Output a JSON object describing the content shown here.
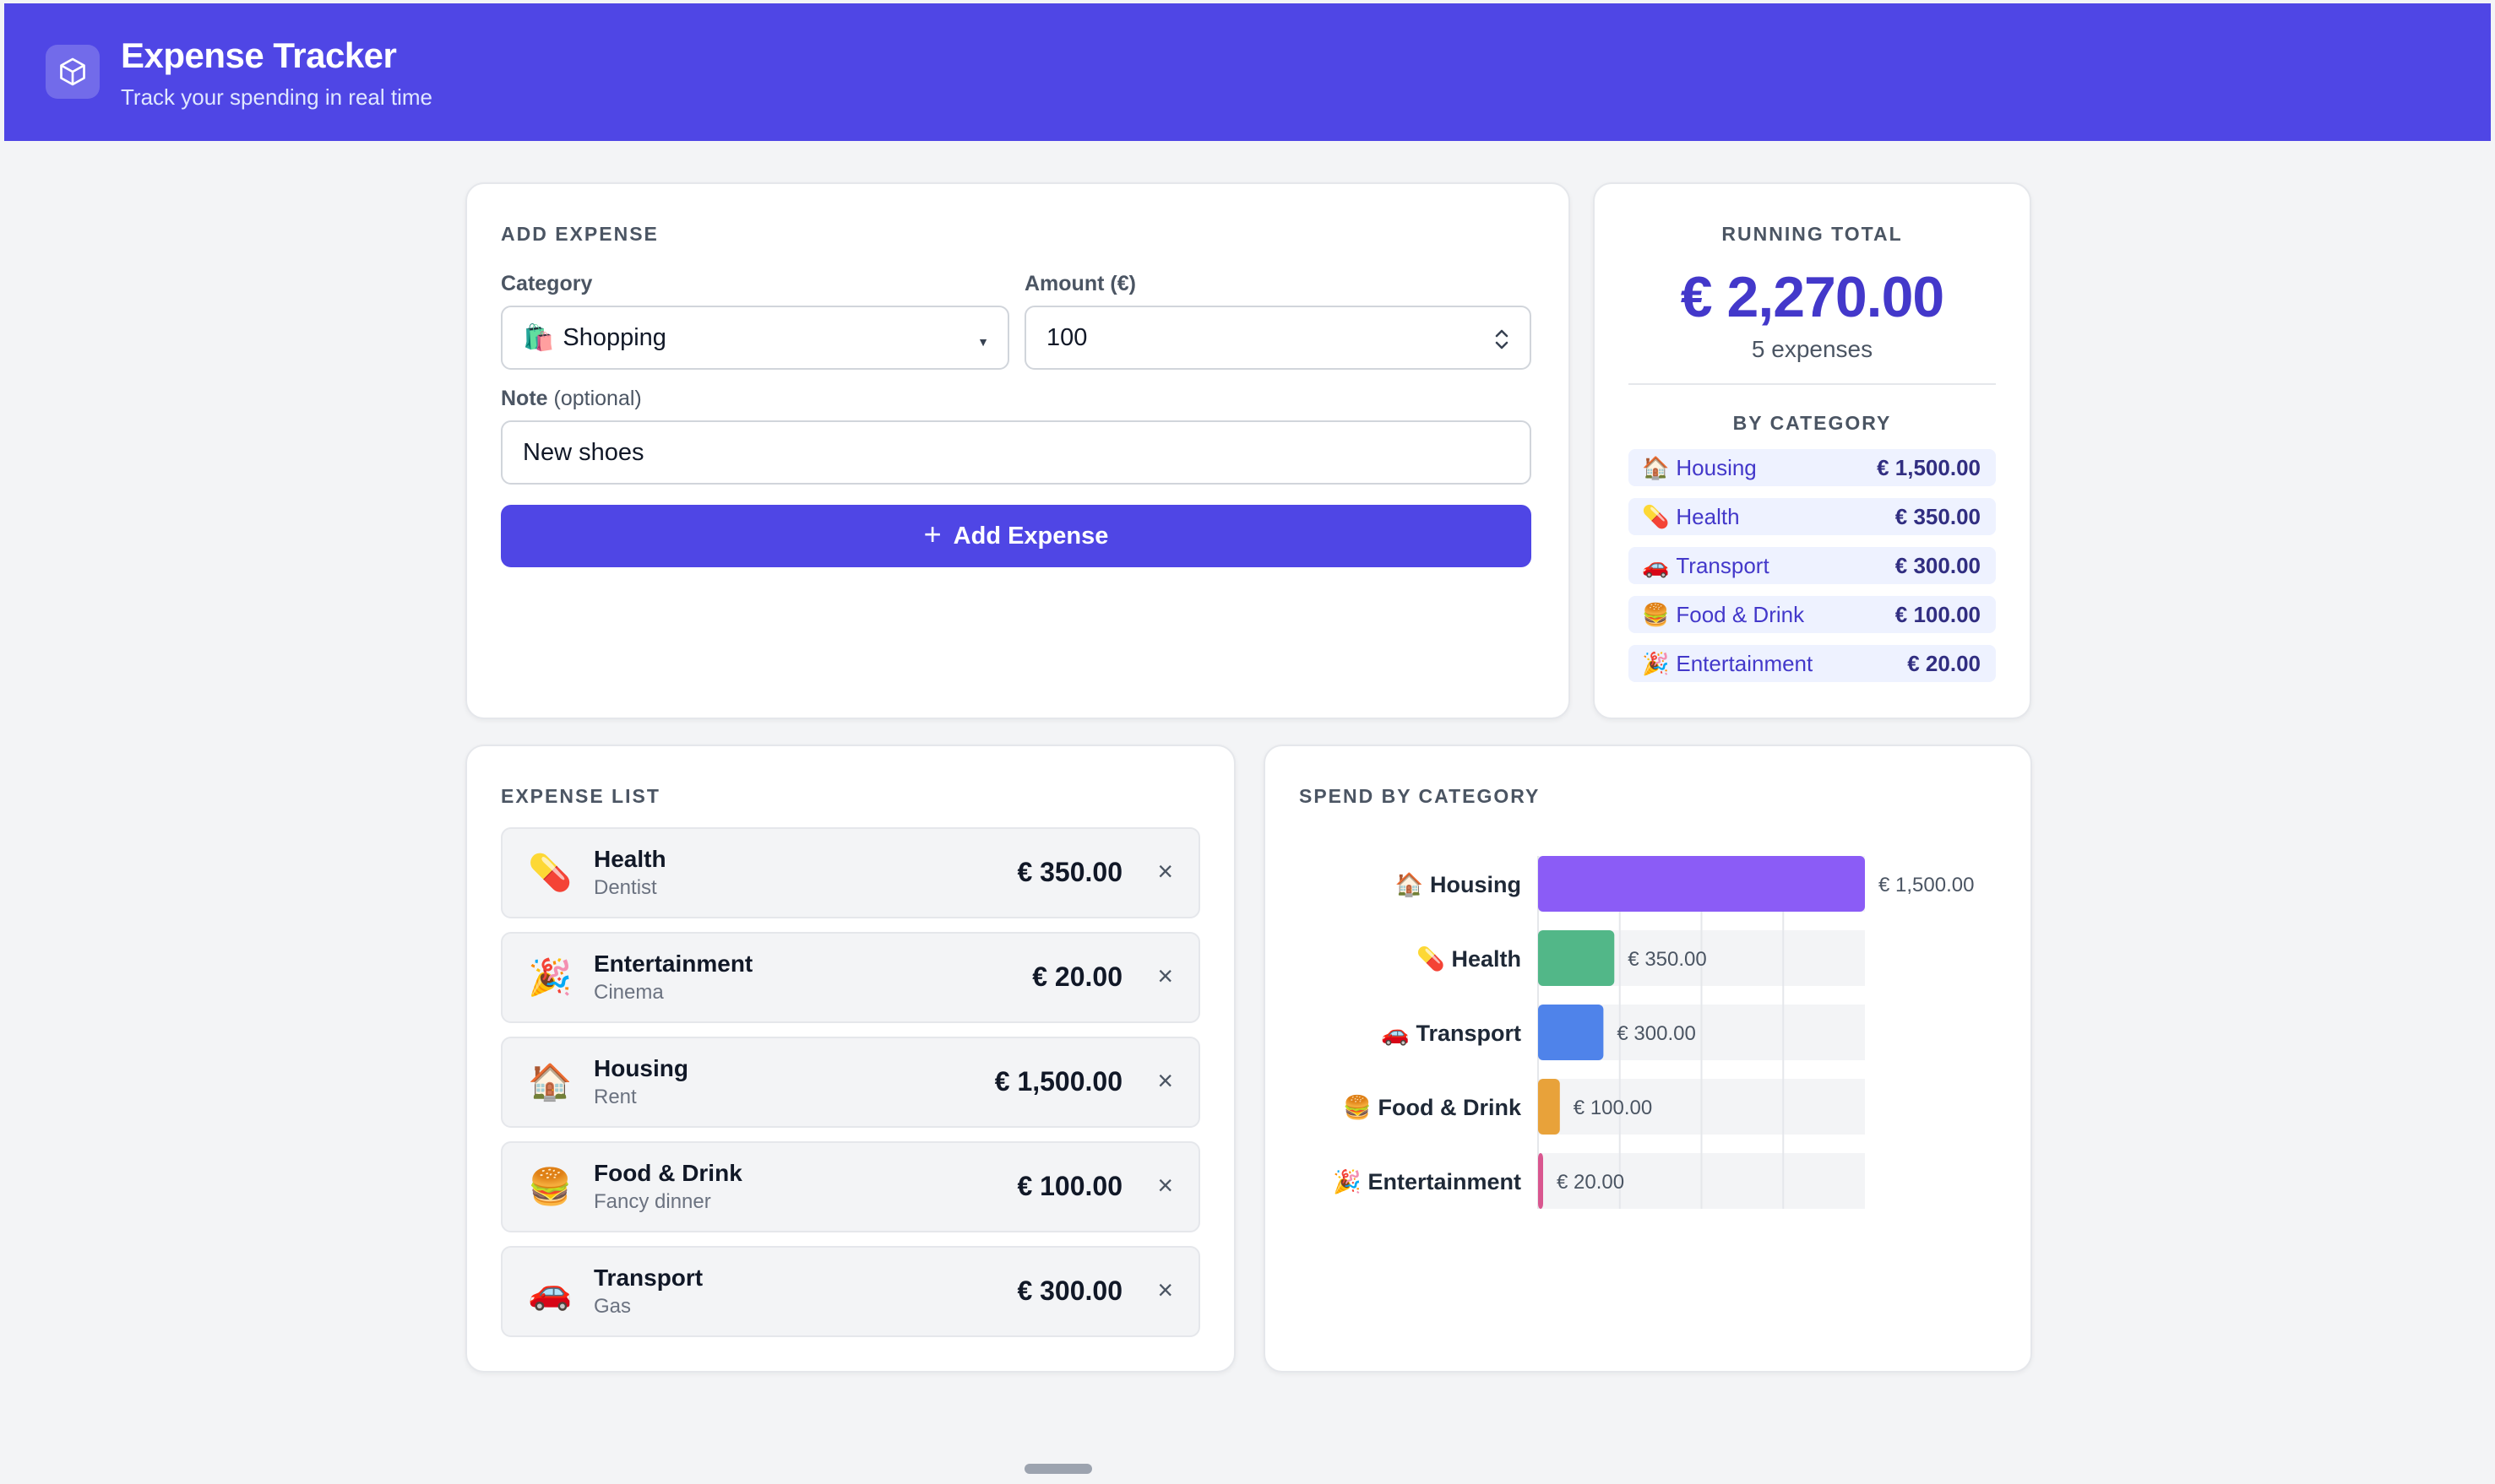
{
  "header": {
    "title": "Expense Tracker",
    "subtitle": "Track your spending in real time",
    "logo_icon": "cube-icon"
  },
  "add_expense": {
    "heading": "Add Expense",
    "category_label": "Category",
    "category_value": "Shopping",
    "category_emoji": "🛍️",
    "amount_label": "Amount (€)",
    "amount_value": "100",
    "note_label": "Note",
    "note_optional": "(optional)",
    "note_value": "New shoes",
    "button_label": "Add Expense"
  },
  "running_total": {
    "heading": "Running Total",
    "amount": "€ 2,270.00",
    "count": "5 expenses",
    "by_category_heading": "By Category",
    "categories": [
      {
        "emoji": "🏠",
        "name": "Housing",
        "amount": "€ 1,500.00"
      },
      {
        "emoji": "💊",
        "name": "Health",
        "amount": "€ 350.00"
      },
      {
        "emoji": "🚗",
        "name": "Transport",
        "amount": "€ 300.00"
      },
      {
        "emoji": "🍔",
        "name": "Food & Drink",
        "amount": "€ 100.00"
      },
      {
        "emoji": "🎉",
        "name": "Entertainment",
        "amount": "€ 20.00"
      }
    ]
  },
  "expense_list": {
    "heading": "Expense List",
    "items": [
      {
        "emoji": "💊",
        "category": "Health",
        "note": "Dentist",
        "amount": "€ 350.00",
        "remove": "×"
      },
      {
        "emoji": "🎉",
        "category": "Entertainment",
        "note": "Cinema",
        "amount": "€ 20.00",
        "remove": "×"
      },
      {
        "emoji": "🏠",
        "category": "Housing",
        "note": "Rent",
        "amount": "€ 1,500.00",
        "remove": "×"
      },
      {
        "emoji": "🍔",
        "category": "Food & Drink",
        "note": "Fancy dinner",
        "amount": "€ 100.00",
        "remove": "×"
      },
      {
        "emoji": "🚗",
        "category": "Transport",
        "note": "Gas",
        "amount": "€ 300.00",
        "remove": "×"
      }
    ]
  },
  "spend_chart": {
    "heading": "Spend by Category"
  },
  "chart_data": {
    "type": "bar",
    "orientation": "horizontal",
    "title": "Spend by Category",
    "categories": [
      "🏠 Housing",
      "💊 Health",
      "🚗 Transport",
      "🍔 Food & Drink",
      "🎉 Entertainment"
    ],
    "values": [
      1500,
      350,
      300,
      100,
      20
    ],
    "value_labels": [
      "€ 1,500.00",
      "€ 350.00",
      "€ 300.00",
      "€ 100.00",
      "€ 20.00"
    ],
    "colors": [
      "#8b5cf6",
      "#52b788",
      "#4f83ea",
      "#e8a23a",
      "#d9568f"
    ],
    "xlim": [
      0,
      1500
    ],
    "grid": true
  }
}
